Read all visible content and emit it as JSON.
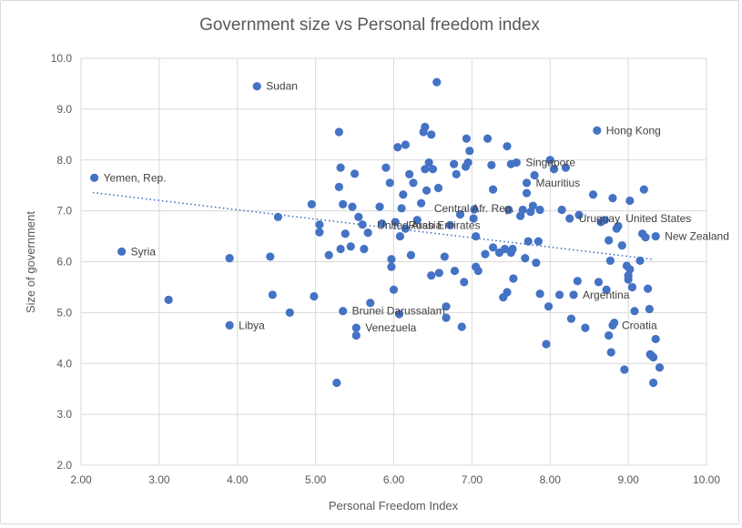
{
  "chart_data": {
    "type": "scatter",
    "title": "Government size vs Personal freedom index",
    "xlabel": "Personal Freedom Index",
    "ylabel": "Size of government",
    "xlim": [
      2.0,
      10.0
    ],
    "ylim": [
      2.0,
      10.0
    ],
    "x_ticks": [
      "2.00",
      "3.00",
      "4.00",
      "5.00",
      "6.00",
      "7.00",
      "8.00",
      "9.00",
      "10.00"
    ],
    "y_ticks": [
      "2.0",
      "3.0",
      "4.0",
      "5.0",
      "6.0",
      "7.0",
      "8.0",
      "9.0",
      "10.0"
    ],
    "grid": "vertical and horizontal gridlines",
    "trendline": {
      "style": "dotted linear",
      "from": [
        2.15,
        7.36
      ],
      "to": [
        9.3,
        6.05
      ]
    },
    "marker_color": "#4472c4",
    "labeled_points": [
      {
        "label": "Sudan",
        "x": 4.25,
        "y": 9.45
      },
      {
        "label": "Hong Kong",
        "x": 8.6,
        "y": 8.58
      },
      {
        "label": "Yemen, Rep.",
        "x": 2.17,
        "y": 7.65
      },
      {
        "label": "Singapore",
        "x": 7.57,
        "y": 7.95
      },
      {
        "label": "Mauritius",
        "x": 7.7,
        "y": 7.55
      },
      {
        "label": "Central Afr. Rep.",
        "x": 6.4,
        "y": 7.05
      },
      {
        "label": "United Arab Emirates",
        "x": 5.67,
        "y": 6.72
      },
      {
        "label": "Russia",
        "x": 6.07,
        "y": 6.72
      },
      {
        "label": "Uruguay",
        "x": 8.25,
        "y": 6.85
      },
      {
        "label": "United States",
        "x": 8.85,
        "y": 6.85
      },
      {
        "label": "New Zealand",
        "x": 9.35,
        "y": 6.5
      },
      {
        "label": "Syria",
        "x": 2.52,
        "y": 6.2
      },
      {
        "label": "Argentina",
        "x": 8.3,
        "y": 5.35
      },
      {
        "label": "Brunei Darussalam",
        "x": 5.35,
        "y": 5.03
      },
      {
        "label": "Venezuela",
        "x": 5.52,
        "y": 4.7
      },
      {
        "label": "Libya",
        "x": 3.9,
        "y": 4.75
      },
      {
        "label": "Croatia",
        "x": 8.8,
        "y": 4.75
      }
    ],
    "points": [
      [
        4.25,
        9.45
      ],
      [
        6.55,
        9.53
      ],
      [
        8.6,
        8.58
      ],
      [
        2.17,
        7.65
      ],
      [
        7.57,
        7.95
      ],
      [
        7.7,
        7.55
      ],
      [
        8.25,
        6.85
      ],
      [
        9.35,
        6.5
      ],
      [
        2.52,
        6.2
      ],
      [
        8.3,
        5.35
      ],
      [
        5.35,
        5.03
      ],
      [
        5.52,
        4.7
      ],
      [
        3.9,
        4.75
      ],
      [
        8.8,
        4.75
      ],
      [
        3.12,
        5.25
      ],
      [
        3.9,
        6.07
      ],
      [
        4.42,
        6.1
      ],
      [
        4.45,
        5.35
      ],
      [
        4.52,
        6.88
      ],
      [
        4.67,
        5.0
      ],
      [
        4.95,
        7.13
      ],
      [
        4.98,
        5.32
      ],
      [
        5.05,
        6.58
      ],
      [
        5.05,
        6.73
      ],
      [
        5.17,
        6.13
      ],
      [
        5.27,
        3.62
      ],
      [
        5.3,
        8.55
      ],
      [
        5.3,
        7.47
      ],
      [
        5.32,
        7.85
      ],
      [
        5.32,
        6.25
      ],
      [
        5.35,
        7.13
      ],
      [
        5.38,
        6.55
      ],
      [
        5.45,
        6.3
      ],
      [
        5.47,
        7.08
      ],
      [
        5.5,
        7.73
      ],
      [
        5.52,
        4.55
      ],
      [
        5.55,
        6.88
      ],
      [
        5.6,
        6.73
      ],
      [
        5.62,
        6.25
      ],
      [
        5.67,
        6.57
      ],
      [
        5.7,
        5.19
      ],
      [
        5.82,
        7.08
      ],
      [
        5.85,
        6.75
      ],
      [
        5.9,
        7.85
      ],
      [
        5.95,
        7.55
      ],
      [
        5.97,
        5.9
      ],
      [
        5.97,
        6.05
      ],
      [
        6.0,
        5.45
      ],
      [
        6.02,
        6.78
      ],
      [
        6.05,
        8.25
      ],
      [
        6.07,
        4.97
      ],
      [
        6.08,
        6.5
      ],
      [
        6.1,
        7.05
      ],
      [
        6.12,
        7.32
      ],
      [
        6.15,
        8.3
      ],
      [
        6.15,
        6.65
      ],
      [
        6.2,
        7.72
      ],
      [
        6.22,
        6.13
      ],
      [
        6.25,
        7.55
      ],
      [
        6.3,
        6.82
      ],
      [
        6.35,
        7.15
      ],
      [
        6.38,
        8.55
      ],
      [
        6.4,
        7.82
      ],
      [
        6.4,
        8.65
      ],
      [
        6.42,
        7.4
      ],
      [
        6.45,
        7.95
      ],
      [
        6.48,
        5.73
      ],
      [
        6.48,
        8.5
      ],
      [
        6.5,
        7.82
      ],
      [
        6.57,
        7.45
      ],
      [
        6.58,
        5.78
      ],
      [
        6.65,
        6.1
      ],
      [
        6.67,
        4.9
      ],
      [
        6.67,
        5.12
      ],
      [
        6.72,
        6.72
      ],
      [
        6.77,
        7.92
      ],
      [
        6.78,
        5.82
      ],
      [
        6.8,
        7.72
      ],
      [
        6.85,
        6.93
      ],
      [
        6.87,
        4.72
      ],
      [
        6.9,
        5.6
      ],
      [
        6.92,
        7.87
      ],
      [
        6.93,
        8.42
      ],
      [
        6.95,
        7.95
      ],
      [
        6.97,
        8.18
      ],
      [
        7.02,
        6.85
      ],
      [
        7.03,
        7.03
      ],
      [
        7.05,
        5.9
      ],
      [
        7.05,
        6.5
      ],
      [
        7.08,
        5.82
      ],
      [
        7.17,
        6.15
      ],
      [
        7.2,
        8.42
      ],
      [
        7.25,
        7.9
      ],
      [
        7.27,
        7.42
      ],
      [
        7.27,
        6.28
      ],
      [
        7.35,
        6.18
      ],
      [
        7.4,
        5.3
      ],
      [
        7.42,
        6.25
      ],
      [
        7.45,
        8.27
      ],
      [
        7.45,
        5.4
      ],
      [
        7.47,
        7.02
      ],
      [
        7.5,
        7.92
      ],
      [
        7.5,
        6.18
      ],
      [
        7.52,
        6.25
      ],
      [
        7.53,
        5.67
      ],
      [
        7.62,
        6.9
      ],
      [
        7.65,
        7.02
      ],
      [
        7.68,
        6.07
      ],
      [
        7.7,
        7.35
      ],
      [
        7.72,
        6.4
      ],
      [
        7.75,
        6.98
      ],
      [
        7.78,
        7.1
      ],
      [
        7.8,
        7.7
      ],
      [
        7.82,
        5.98
      ],
      [
        7.85,
        6.4
      ],
      [
        7.87,
        5.37
      ],
      [
        7.87,
        7.02
      ],
      [
        7.95,
        4.38
      ],
      [
        7.98,
        5.12
      ],
      [
        8.0,
        8.0
      ],
      [
        8.05,
        7.82
      ],
      [
        8.12,
        5.35
      ],
      [
        8.15,
        7.02
      ],
      [
        8.2,
        7.85
      ],
      [
        8.27,
        4.88
      ],
      [
        8.35,
        5.62
      ],
      [
        8.37,
        6.92
      ],
      [
        8.45,
        4.7
      ],
      [
        8.55,
        7.32
      ],
      [
        8.62,
        5.6
      ],
      [
        8.65,
        6.78
      ],
      [
        8.7,
        6.82
      ],
      [
        8.72,
        5.45
      ],
      [
        8.75,
        6.42
      ],
      [
        8.75,
        4.55
      ],
      [
        8.77,
        6.02
      ],
      [
        8.78,
        4.22
      ],
      [
        8.8,
        7.25
      ],
      [
        8.82,
        4.8
      ],
      [
        8.85,
        6.65
      ],
      [
        8.87,
        6.7
      ],
      [
        8.92,
        6.32
      ],
      [
        8.95,
        3.88
      ],
      [
        8.98,
        5.92
      ],
      [
        9.0,
        5.65
      ],
      [
        9.0,
        5.73
      ],
      [
        9.02,
        7.2
      ],
      [
        9.02,
        5.85
      ],
      [
        9.05,
        5.5
      ],
      [
        9.08,
        5.03
      ],
      [
        9.15,
        6.02
      ],
      [
        9.18,
        6.55
      ],
      [
        9.2,
        7.42
      ],
      [
        9.25,
        5.47
      ],
      [
        9.27,
        5.07
      ],
      [
        9.28,
        4.18
      ],
      [
        9.3,
        4.15
      ],
      [
        9.32,
        4.12
      ],
      [
        9.32,
        3.62
      ],
      [
        9.35,
        4.48
      ],
      [
        9.4,
        3.92
      ],
      [
        9.22,
        6.48
      ]
    ]
  }
}
